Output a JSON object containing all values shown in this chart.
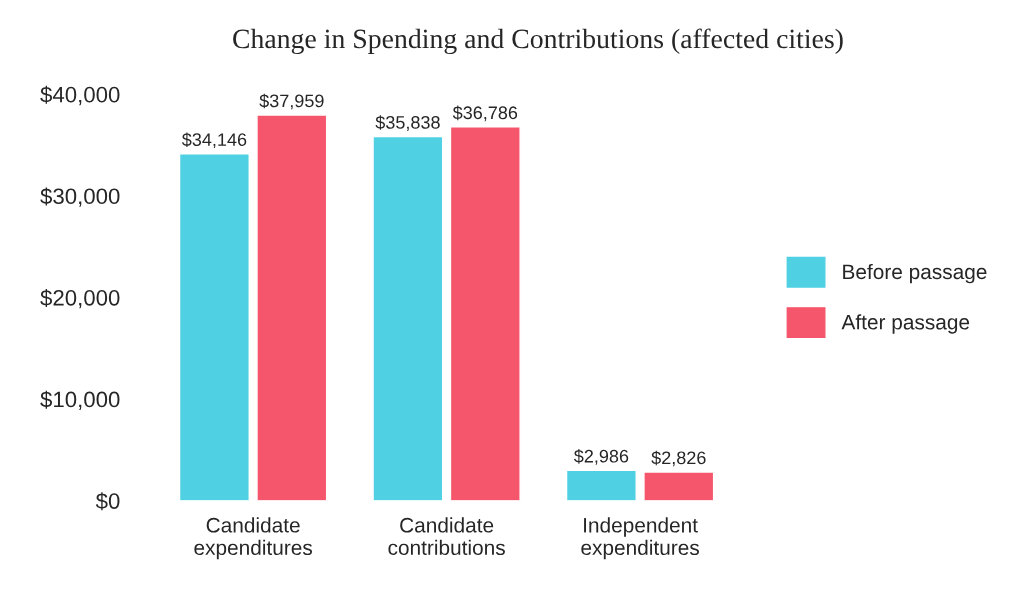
{
  "chart_data": {
    "type": "bar",
    "title": "Change in Spending and Contributions (affected cities)",
    "categories": [
      "Candidate expenditures",
      "Candidate contributions",
      "Independent expenditures"
    ],
    "series": [
      {
        "name": "Before passage",
        "color": "#4fd0e3",
        "values": [
          34146,
          35838,
          2986
        ],
        "value_labels": [
          "$34,146",
          "$35,838",
          "$2,986"
        ]
      },
      {
        "name": "After passage",
        "color": "#f5566b",
        "values": [
          37959,
          36786,
          2826
        ],
        "value_labels": [
          "$37,959",
          "$36,786",
          "$2,826"
        ]
      }
    ],
    "ylim": [
      0,
      40000
    ],
    "yticks": [
      {
        "value": 0,
        "label": "$0"
      },
      {
        "value": 10000,
        "label": "$10,000"
      },
      {
        "value": 20000,
        "label": "$20,000"
      },
      {
        "value": 30000,
        "label": "$30,000"
      },
      {
        "value": 40000,
        "label": "$40,000"
      }
    ],
    "grid": false,
    "legend": "right"
  }
}
